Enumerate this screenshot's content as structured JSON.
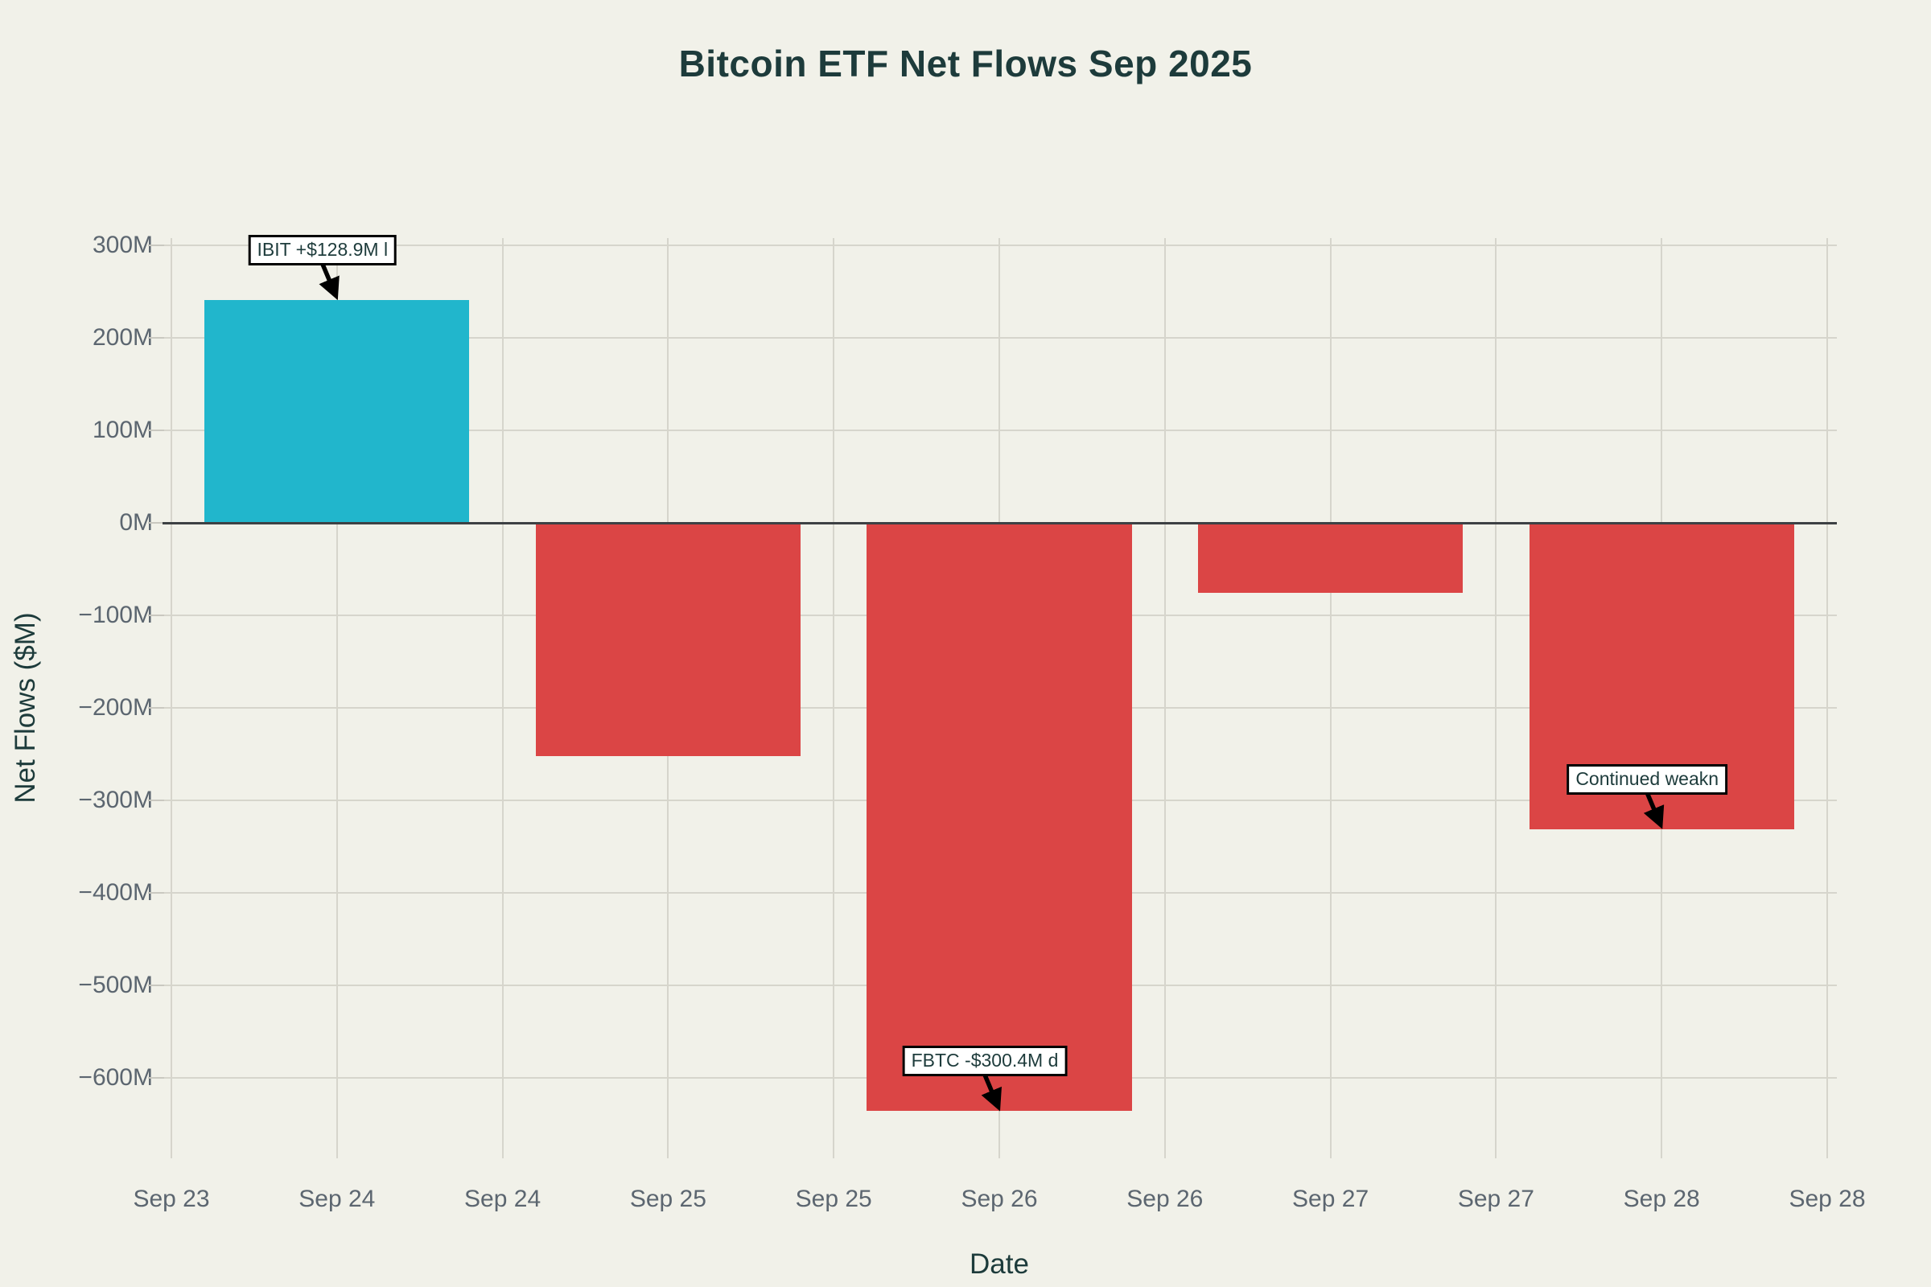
{
  "chart_data": {
    "type": "bar",
    "title": "Bitcoin ETF Net Flows Sep 2025",
    "xlabel": "Date",
    "ylabel": "Net Flows ($M)",
    "categories": [
      "Sep 24",
      "Sep 25",
      "Sep 26",
      "Sep 27",
      "Sep 28"
    ],
    "values": [
      241,
      -252,
      -636,
      -76,
      -331
    ],
    "value_unit": "millions of USD",
    "series_note": "single series; positive bars teal, negative bars red",
    "positive_color": "#21b6cc",
    "negative_color": "#db4545",
    "x_tick_labels": [
      "Sep 23",
      "Sep 24",
      "Sep 24",
      "Sep 25",
      "Sep 25",
      "Sep 26",
      "Sep 26",
      "Sep 27",
      "Sep 27",
      "Sep 28",
      "Sep 28"
    ],
    "y_tick_values": [
      300,
      200,
      100,
      0,
      -100,
      -200,
      -300,
      -400,
      -500,
      -600
    ],
    "y_tick_labels": [
      "300M",
      "200M",
      "100M",
      "0M",
      "−100M",
      "−200M",
      "−300M",
      "−400M",
      "−500M",
      "−600M"
    ],
    "ylim": [
      -687,
      308
    ],
    "grid": true,
    "legend": false,
    "zero_line": true,
    "annotations": [
      {
        "text": "IBIT +$128.9M l",
        "bar_index": 0,
        "points_to": "top of Sep 24 bar"
      },
      {
        "text": "FBTC -$300.4M d",
        "bar_index": 2,
        "points_to": "bottom of Sep 26 bar"
      },
      {
        "text": "Continued weakn",
        "bar_index": 4,
        "points_to": "bottom of Sep 28 bar"
      }
    ],
    "colors": {
      "background": "#f1f1e9",
      "title_text": "#1d3b3b",
      "tick_text": "#5c6670",
      "gridline": "#d6d5cc",
      "zero_line": "#3d4144",
      "annotation_bg": "#ffffff",
      "annotation_border": "#000000",
      "arrow": "#000000"
    }
  }
}
